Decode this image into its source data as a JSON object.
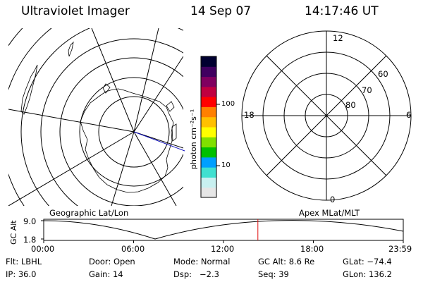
{
  "header": {
    "title": "Ultraviolet Imager",
    "date": "14 Sep 07",
    "time": "14:17:46 UT"
  },
  "geo_map": {
    "caption": "Geographic Lat/Lon"
  },
  "colorbar": {
    "unit_label": "photon cm⁻²s⁻¹",
    "ticks": [
      "100",
      "10"
    ],
    "scale": "log",
    "colors": [
      "#e6e6e6",
      "#c8f0f0",
      "#40e0d0",
      "#00a0ff",
      "#00c000",
      "#80e000",
      "#ffff00",
      "#ffc000",
      "#ff8000",
      "#ff0000",
      "#c00040",
      "#800060",
      "#400060",
      "#000030"
    ]
  },
  "mlt_plot": {
    "caption": "Apex MLat/MLT",
    "mlt_labels": {
      "top": "12",
      "bottom": "0",
      "left": "18",
      "right": "6"
    },
    "lat_labels": [
      "60",
      "70",
      "80"
    ]
  },
  "altitude_panel": {
    "ylabel": "GC Alt",
    "y_ticks": [
      "9.0",
      "1.8"
    ],
    "x_ticks": [
      "00:00",
      "06:00",
      "12:00",
      "18:00",
      "23:59"
    ],
    "current_time_marker_hours": 14.296
  },
  "info": {
    "filter": "Flt: LBHL",
    "door": "Door: Open",
    "mode": "Mode: Normal",
    "gc_alt": "GC Alt: 8.6 Re",
    "glat": "GLat: −74.4",
    "ip": "IP: 36.0",
    "gain": "Gain: 14",
    "dsp": "Dsp:   −2.3",
    "seq": "Seq: 39",
    "glon": "GLon: 136.2"
  }
}
